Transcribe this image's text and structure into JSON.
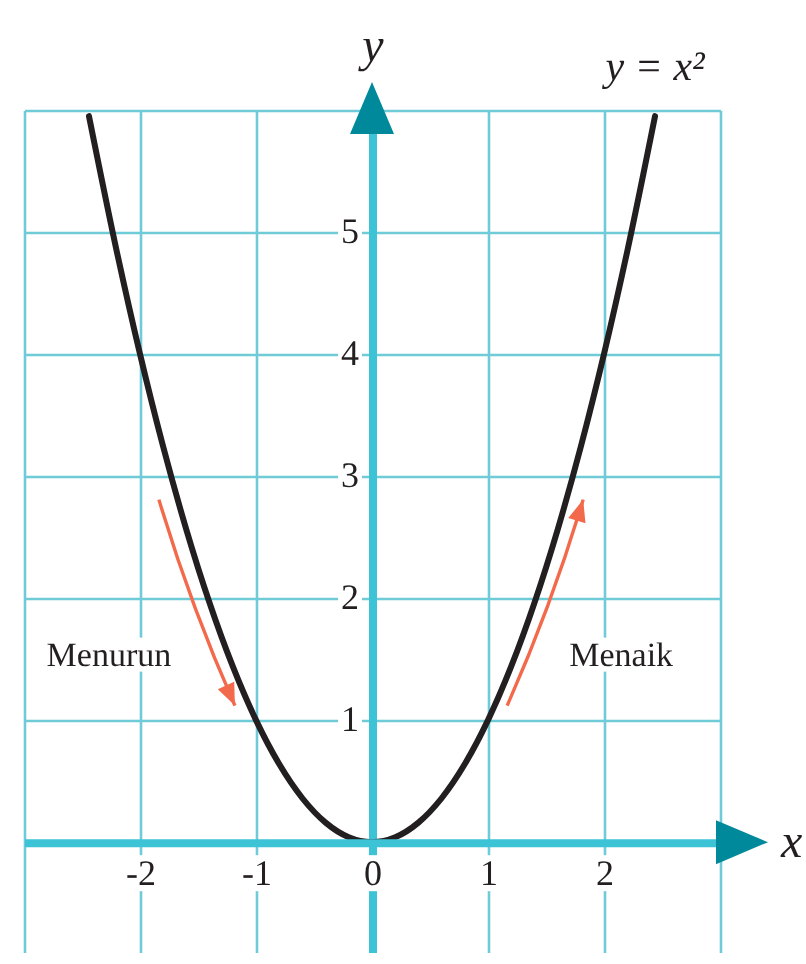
{
  "chart_data": {
    "type": "line",
    "xlabel": "x",
    "ylabel": "y",
    "x": [
      -2.44,
      -2.2,
      -2,
      -1.8,
      -1.6,
      -1.4,
      -1.2,
      -1,
      -0.8,
      -0.6,
      -0.4,
      -0.2,
      0,
      0.2,
      0.4,
      0.6,
      0.8,
      1,
      1.2,
      1.4,
      1.6,
      1.8,
      2,
      2.2,
      2.44
    ],
    "series": [
      {
        "name": "y = x²",
        "color": "#231f20",
        "values": [
          5.95,
          4.84,
          4,
          3.24,
          2.56,
          1.96,
          1.44,
          1,
          0.64,
          0.36,
          0.16,
          0.04,
          0,
          0.04,
          0.16,
          0.36,
          0.64,
          1,
          1.44,
          1.96,
          2.56,
          3.24,
          4,
          4.84,
          5.95
        ]
      }
    ],
    "xlim": [
      -3,
      3
    ],
    "ylim": [
      -0.9,
      6
    ],
    "xticks": [
      {
        "value": -3,
        "label": null
      },
      -2,
      -1,
      0,
      1,
      2,
      {
        "value": 3,
        "label": null
      }
    ],
    "yticks": [
      {
        "value": 0,
        "label": null
      },
      1,
      2,
      3,
      4,
      5,
      {
        "value": 6,
        "label": null
      }
    ],
    "grid": true,
    "annotations": [
      "Menurun",
      "Menaik"
    ]
  }
}
